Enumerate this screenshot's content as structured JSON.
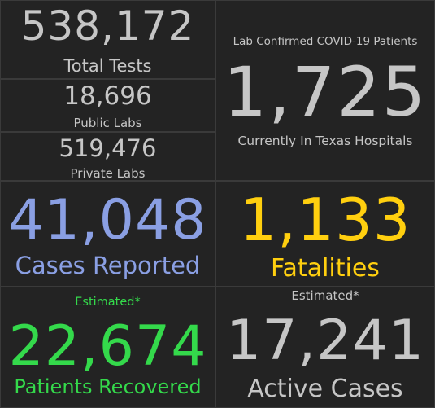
{
  "colors": {
    "background": "#1d1d1d",
    "panel": "#232323",
    "gray": "#c6c6c6",
    "blue": "#8a9fe3",
    "yellow": "#ffcf0f",
    "green": "#34d94b"
  },
  "tests": {
    "total_value": "538,172",
    "total_label": "Total Tests",
    "public_value": "18,696",
    "public_label": "Public Labs",
    "private_value": "519,476",
    "private_label": "Private Labs"
  },
  "hospitals": {
    "header": "Lab Confirmed COVID-19 Patients",
    "value": "1,725",
    "label": "Currently In Texas Hospitals"
  },
  "cases": {
    "value": "41,048",
    "label": "Cases Reported"
  },
  "fatalities": {
    "value": "1,133",
    "label": "Fatalities"
  },
  "recovered": {
    "note": "Estimated*",
    "value": "22,674",
    "label": "Patients Recovered"
  },
  "active": {
    "note": "Estimated*",
    "value": "17,241",
    "label": "Active Cases"
  }
}
